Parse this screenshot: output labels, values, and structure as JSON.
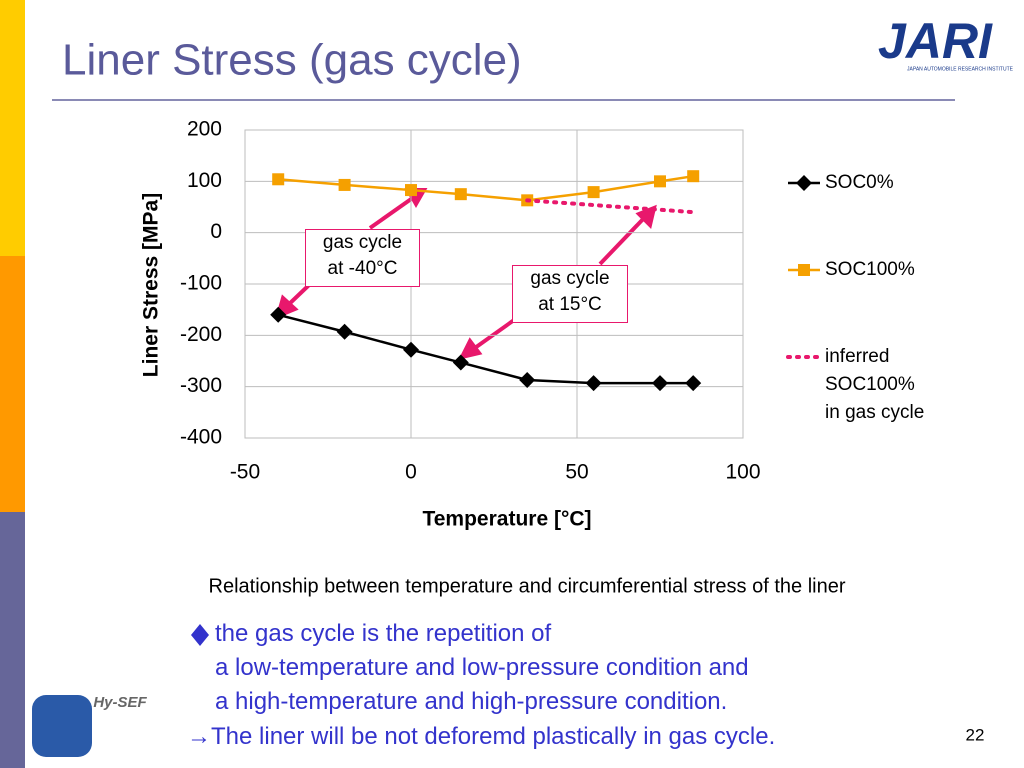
{
  "header": {
    "title": "Liner Stress (gas cycle)",
    "logo": "JARI",
    "logo_subtitle": "JAPAN AUTOMOBILE RESEARCH INSTITUTE"
  },
  "chart_data": {
    "type": "line",
    "x_label": "Temperature [°C]",
    "y_label": "Liner Stress [MPa]",
    "xlim": [
      -50,
      100
    ],
    "ylim": [
      -400,
      200
    ],
    "xticks": [
      -50,
      0,
      50,
      100
    ],
    "yticks": [
      200,
      100,
      0,
      -100,
      -200,
      -300,
      -400
    ],
    "grid": true,
    "legend": "right",
    "series": [
      {
        "name": "SOC0%",
        "color": "#000000",
        "marker": "diamond",
        "style": "solid",
        "x": [
          -40,
          -20,
          0,
          15,
          35,
          55,
          75,
          85
        ],
        "values": [
          -160,
          -193,
          -228,
          -253,
          -287,
          -293,
          -293,
          -293
        ]
      },
      {
        "name": "SOC100%",
        "color": "#f5a000",
        "marker": "square",
        "style": "solid",
        "x": [
          -40,
          -20,
          0,
          15,
          35,
          55,
          75,
          85
        ],
        "values": [
          104,
          93,
          83,
          75,
          63,
          79,
          100,
          110
        ]
      },
      {
        "name": "inferred\nSOC100%\nin gas cycle",
        "color": "#e8186c",
        "marker": "none",
        "style": "dotted",
        "x": [
          35,
          85
        ],
        "values": [
          63,
          40
        ]
      }
    ],
    "annotations": [
      {
        "text": "gas cycle\nat -40°C"
      },
      {
        "text": "gas cycle\nat 15°C"
      }
    ]
  },
  "caption": "Relationship between temperature and circumferential stress of the liner",
  "bullets": [
    "the gas cycle is the repetition of",
    "a low-temperature and low-pressure condition and",
    "a high-temperature and high-pressure condition.",
    "→The liner will be not deforemd plastically in gas cycle."
  ],
  "footer": {
    "logo": "Hy-SEF",
    "page_number": 22
  }
}
